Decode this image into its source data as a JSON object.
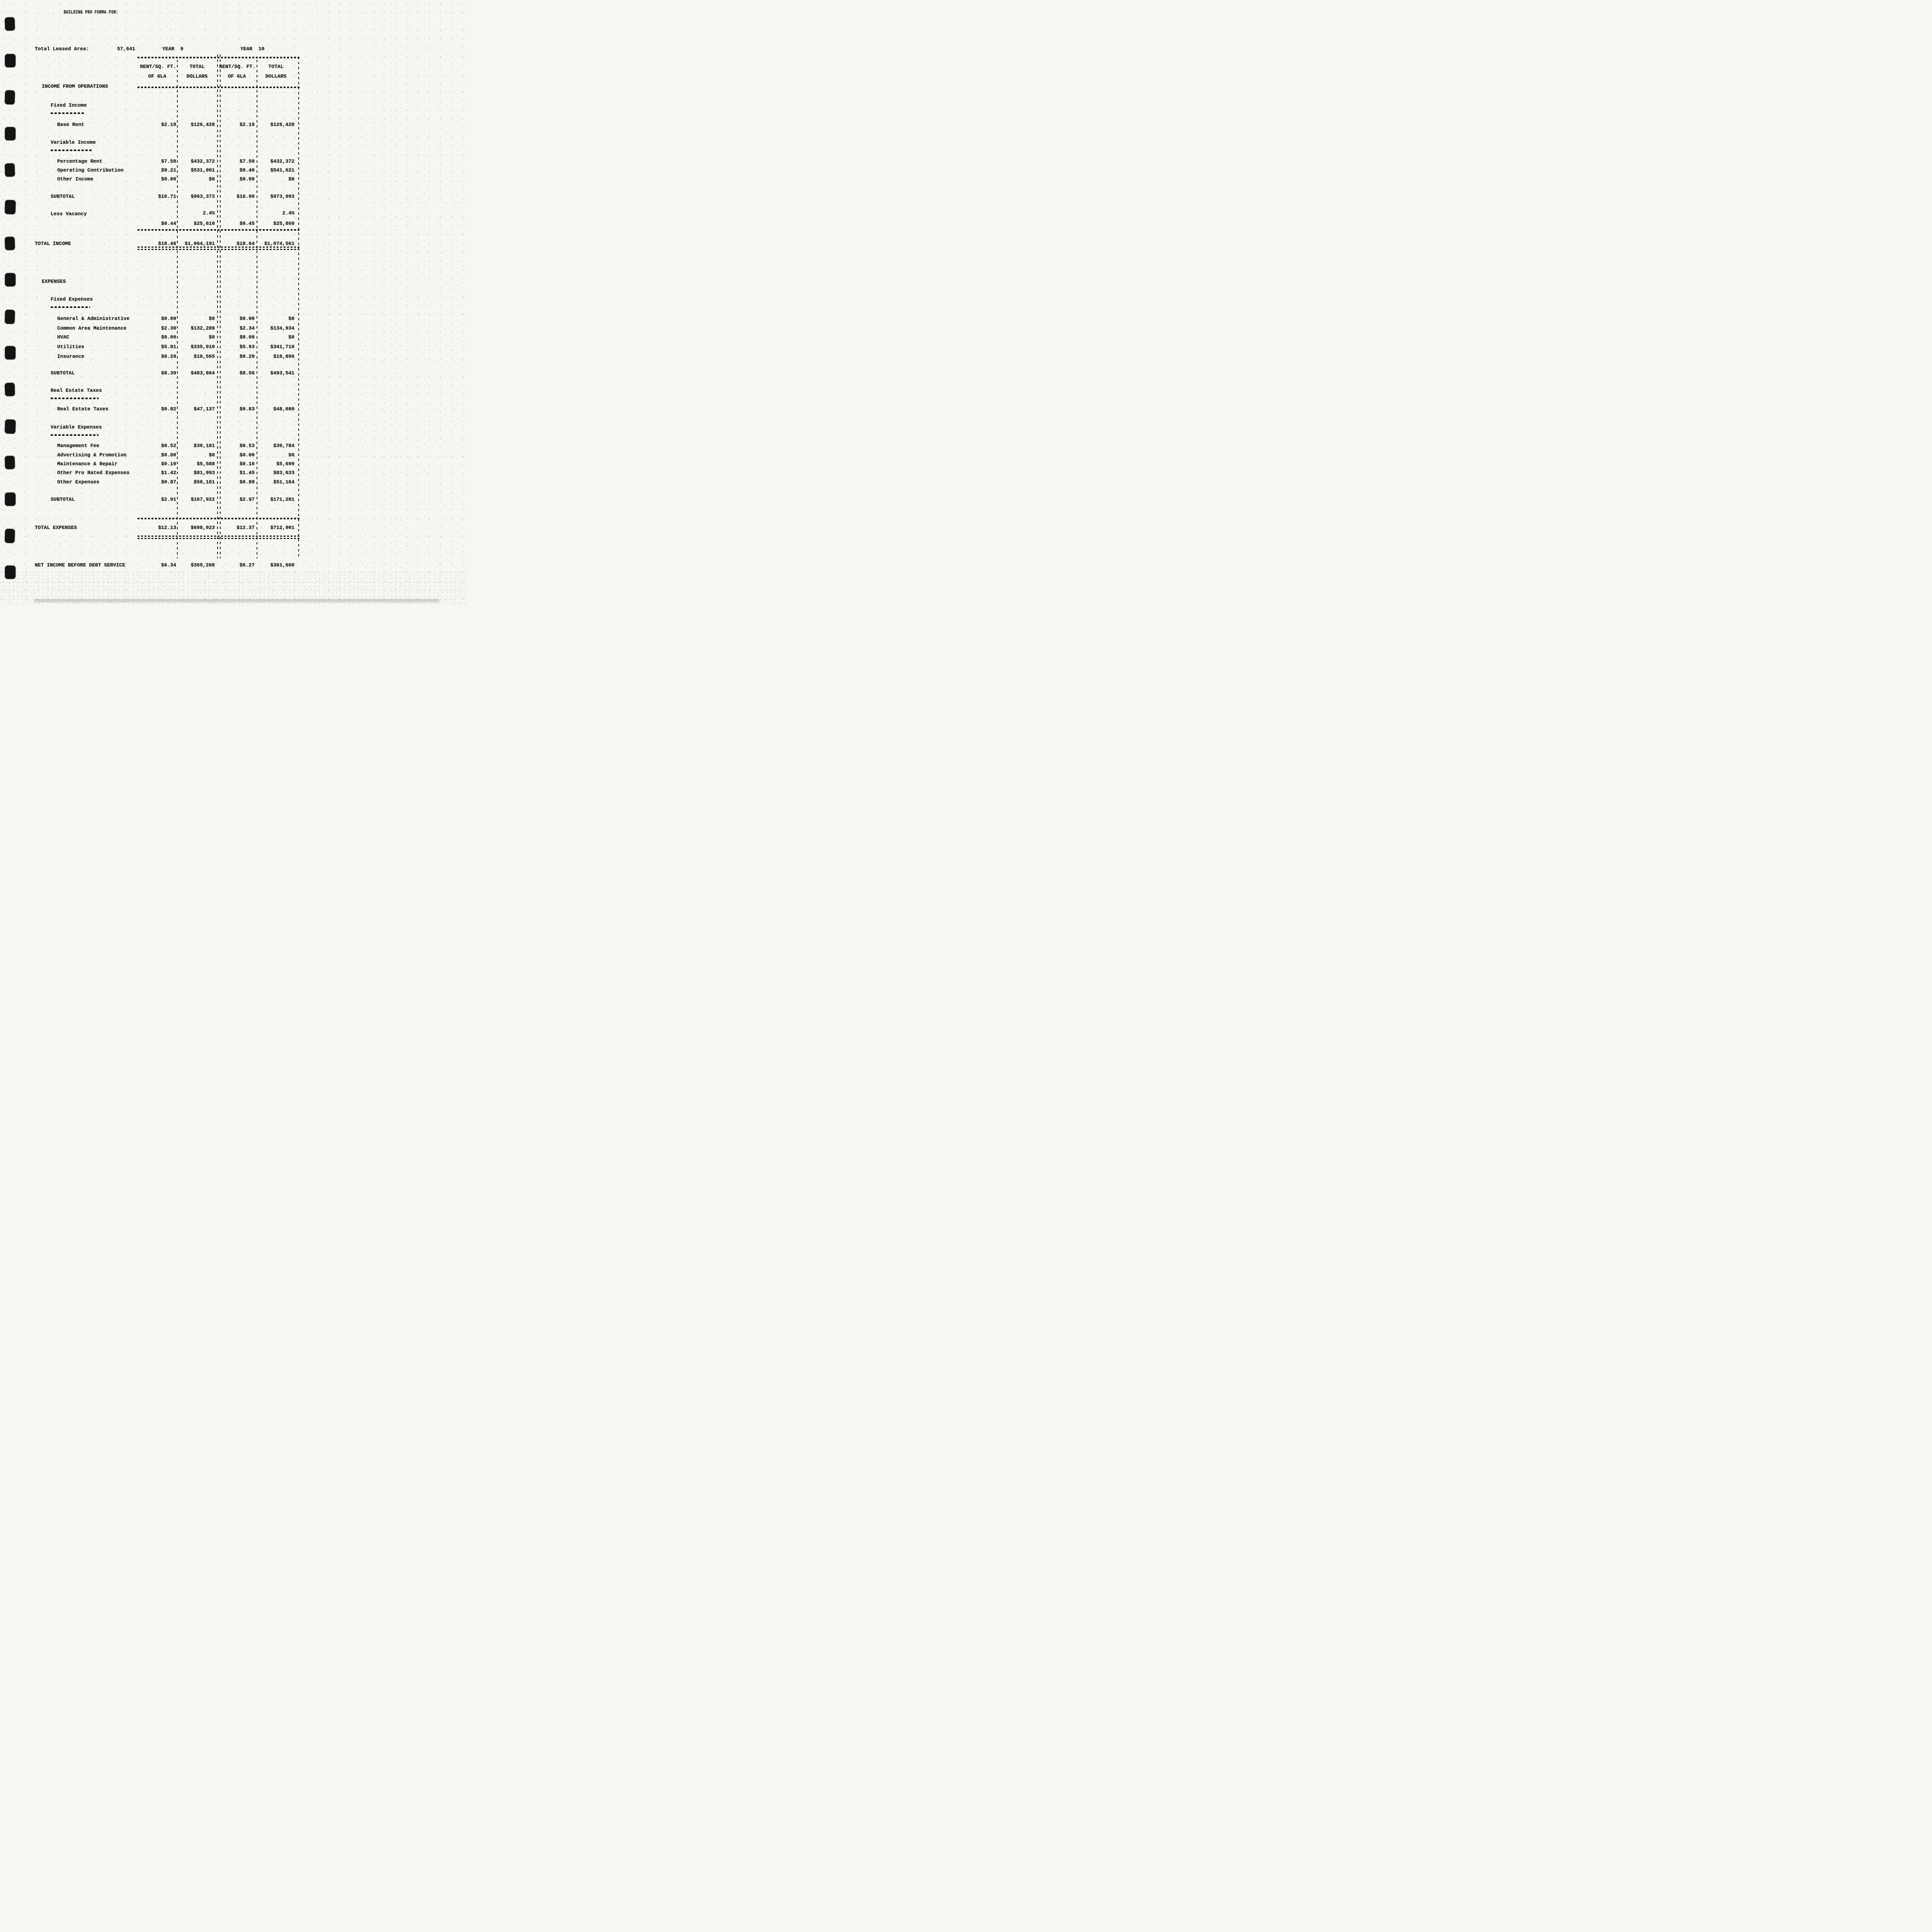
{
  "page": {
    "title": "BUILDING PRO FORMA FOR:",
    "leased_area": {
      "label": "Total Leased Area:",
      "value": "57,641"
    },
    "year_headers": [
      "YEAR  9",
      "YEAR  10"
    ],
    "column_headers": {
      "row1": [
        "RENT/SQ. FT.",
        "TOTAL",
        "RENT/SQ. FT.",
        "TOTAL"
      ],
      "row2": [
        "OF GLA",
        "DOLLARS",
        "OF GLA",
        "DOLLARS"
      ]
    }
  },
  "table": {
    "rows": [
      {
        "type": "section",
        "label": "INCOME FROM OPERATIONS"
      },
      {
        "type": "sub",
        "label": "Fixed Income",
        "underline": true
      },
      {
        "type": "data",
        "label": "Base Rent",
        "values": [
          "$2.19",
          "$126,428",
          "$2.19",
          "$126,428"
        ]
      },
      {
        "type": "sub",
        "label": "Variable Income",
        "underline": true
      },
      {
        "type": "data",
        "label": "Percentage Rent",
        "values": [
          "$7.50",
          "$432,372",
          "$7.50",
          "$432,372"
        ]
      },
      {
        "type": "data",
        "label": "Operating Contribution",
        "values": [
          "$9.21",
          "$531,001",
          "$9.40",
          "$541,621"
        ]
      },
      {
        "type": "data",
        "label": "Other Income",
        "values": [
          "$0.00",
          "$0",
          "$0.00",
          "$0"
        ]
      },
      {
        "type": "subtotal",
        "label": "SUBTOTAL",
        "values": [
          "$16.71",
          "$963,373",
          "$16.90",
          "$973,993"
        ]
      },
      {
        "type": "vacancy",
        "label": "Less Vacancy",
        "pct": [
          "2.4%",
          "2.4%"
        ],
        "values": [
          "$0.44",
          "$25,610",
          "$0.45",
          "$25,860"
        ]
      },
      {
        "type": "rule"
      },
      {
        "type": "total",
        "label": "TOTAL INCOME",
        "values": [
          "$18.46",
          "$1,064,191",
          "$18.64",
          "$1,074,561"
        ]
      },
      {
        "type": "double-rule"
      },
      {
        "type": "section",
        "label": "EXPENSES"
      },
      {
        "type": "sub",
        "label": "Fixed Expenses",
        "underline": true
      },
      {
        "type": "data",
        "label": "General & Administrative",
        "values": [
          "$0.00",
          "$0",
          "$0.00",
          "$0"
        ]
      },
      {
        "type": "data",
        "label": "Common Area Maintenance",
        "values": [
          "$2.30",
          "$132,289",
          "$2.34",
          "$134,934"
        ]
      },
      {
        "type": "data",
        "label": "HVAC",
        "values": [
          "$0.00",
          "$0",
          "$0.00",
          "$0"
        ]
      },
      {
        "type": "data",
        "label": "Utilities",
        "values": [
          "$5.81",
          "$335,010",
          "$5.93",
          "$341,710"
        ]
      },
      {
        "type": "data",
        "label": "Insurance",
        "values": [
          "$0.29",
          "$16,565",
          "$0.29",
          "$16,896"
        ]
      },
      {
        "type": "subtotal",
        "label": "SUBTOTAL",
        "values": [
          "$8.39",
          "$483,864",
          "$8.56",
          "$493,541"
        ]
      },
      {
        "type": "sub",
        "label": "Real Estate Taxes",
        "underline": true
      },
      {
        "type": "data",
        "label": "Real Estate Taxes",
        "values": [
          "$0.82",
          "$47,137",
          "$0.83",
          "$48,080"
        ]
      },
      {
        "type": "sub",
        "label": "Variable Expenses",
        "underline": true
      },
      {
        "type": "data",
        "label": "Management Fee",
        "values": [
          "$0.52",
          "$30,181",
          "$0.53",
          "$30,784"
        ]
      },
      {
        "type": "data",
        "label": "Advertising & Promotion",
        "values": [
          "$0.00",
          "$0",
          "$0.00",
          "$0"
        ]
      },
      {
        "type": "data",
        "label": "Maintenance & Repair",
        "values": [
          "$0.10",
          "$5,588",
          "$0.10",
          "$5,699"
        ]
      },
      {
        "type": "data",
        "label": "Other Pro Rated Expenses",
        "values": [
          "$1.42",
          "$81,993",
          "$1.45",
          "$83,633"
        ]
      },
      {
        "type": "data",
        "label": "Other Expenses",
        "values": [
          "$0.87",
          "$50,161",
          "$0.89",
          "$51,164"
        ]
      },
      {
        "type": "subtotal",
        "label": "SUBTOTAL",
        "values": [
          "$2.91",
          "$167,922",
          "$2.97",
          "$171,281"
        ]
      },
      {
        "type": "rule"
      },
      {
        "type": "total",
        "label": "TOTAL EXPENSES",
        "values": [
          "$12.13",
          "$698,923",
          "$12.37",
          "$712,901"
        ]
      },
      {
        "type": "double-rule"
      },
      {
        "type": "total",
        "label": "NET INCOME BEFORE DEBT SERVICE",
        "values": [
          "$6.34",
          "$365,268",
          "$6.27",
          "$361,660"
        ]
      }
    ]
  }
}
